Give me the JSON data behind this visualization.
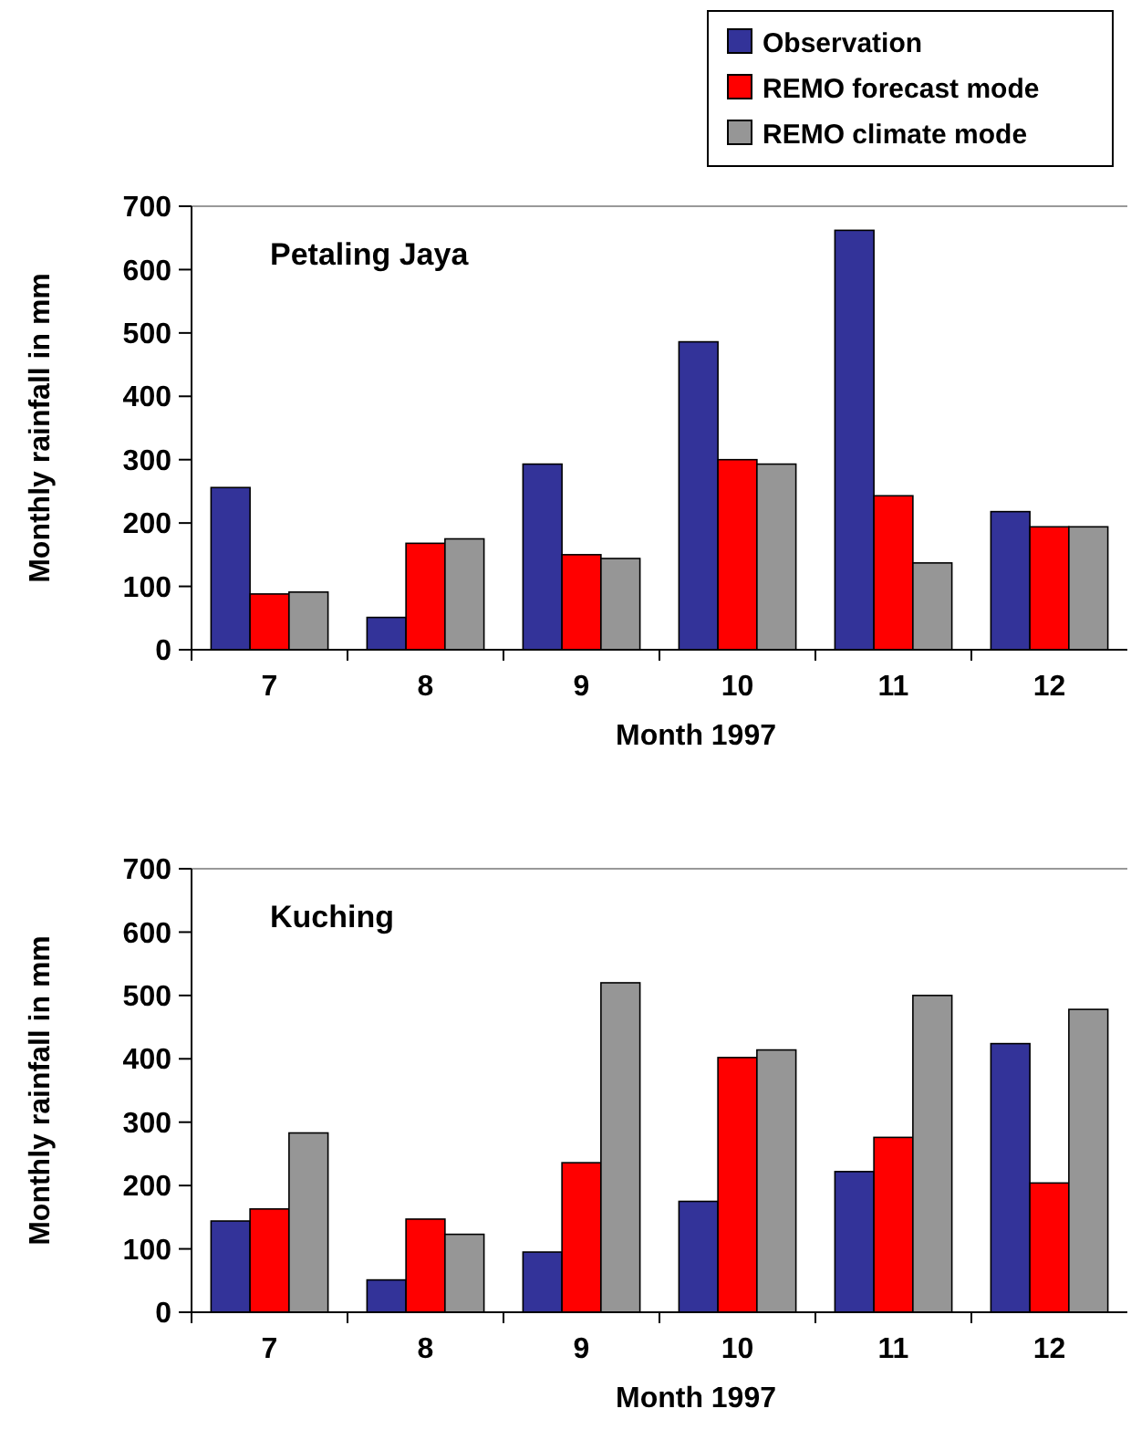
{
  "chart_data": [
    {
      "type": "bar",
      "title": "Petaling Jaya",
      "xlabel": "Month 1997",
      "ylabel": "Monthly rainfall in mm",
      "categories": [
        "7",
        "8",
        "9",
        "10",
        "11",
        "12"
      ],
      "ylim": [
        0,
        700
      ],
      "yticks": [
        0,
        100,
        200,
        300,
        400,
        500,
        600,
        700
      ],
      "grid": false,
      "legend": "top right",
      "series": [
        {
          "name": "Observation",
          "color": "#333399",
          "values": [
            256,
            51,
            293,
            486,
            662,
            218
          ]
        },
        {
          "name": "REMO forecast mode",
          "color": "#ff0000",
          "values": [
            88,
            168,
            150,
            300,
            243,
            194
          ]
        },
        {
          "name": "REMO climate mode",
          "color": "#969696",
          "values": [
            91,
            175,
            144,
            293,
            137,
            194
          ]
        }
      ]
    },
    {
      "type": "bar",
      "title": "Kuching",
      "xlabel": "Month 1997",
      "ylabel": "Monthly rainfall in mm",
      "categories": [
        "7",
        "8",
        "9",
        "10",
        "11",
        "12"
      ],
      "ylim": [
        0,
        700
      ],
      "yticks": [
        0,
        100,
        200,
        300,
        400,
        500,
        600,
        700
      ],
      "grid": false,
      "legend": false,
      "series": [
        {
          "color": "#333399",
          "values": [
            144,
            51,
            95,
            175,
            222,
            424
          ]
        },
        {
          "color": "#ff0000",
          "values": [
            163,
            147,
            236,
            402,
            276,
            204
          ]
        },
        {
          "color": "#969696",
          "values": [
            283,
            123,
            520,
            414,
            500,
            478
          ]
        }
      ]
    }
  ]
}
